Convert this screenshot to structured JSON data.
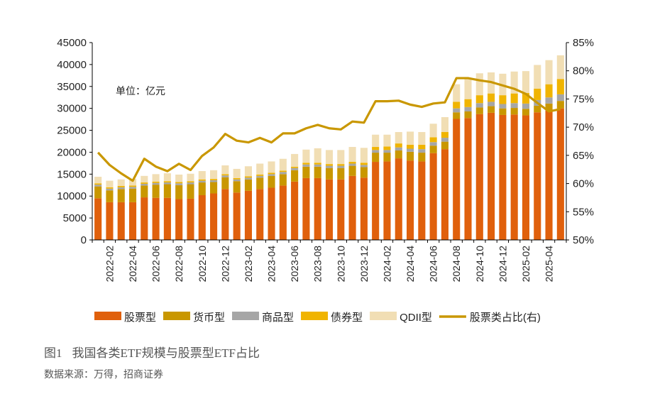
{
  "figure": {
    "number": "图1",
    "title": "我国各类ETF规模与股票型ETF占比",
    "source": "数据来源：万得，招商证券",
    "unit_note": "单位：亿元"
  },
  "chart_data": {
    "type": "bar",
    "stacked": true,
    "categories": [
      "2022-01",
      "2022-02",
      "2022-03",
      "2022-04",
      "2022-05",
      "2022-06",
      "2022-07",
      "2022-08",
      "2022-09",
      "2022-10",
      "2022-11",
      "2022-12",
      "2023-01",
      "2023-02",
      "2023-03",
      "2023-04",
      "2023-05",
      "2023-06",
      "2023-07",
      "2023-08",
      "2023-09",
      "2023-10",
      "2023-11",
      "2023-12",
      "2024-01",
      "2024-02",
      "2024-03",
      "2024-04",
      "2024-05",
      "2024-06",
      "2024-07",
      "2024-08",
      "2024-09",
      "2024-10",
      "2024-11",
      "2024-12",
      "2025-01",
      "2025-02",
      "2025-03",
      "2025-04",
      "2025-05"
    ],
    "xtick_labels": [
      "2022-02",
      "2022-04",
      "2022-06",
      "2022-08",
      "2022-10",
      "2022-12",
      "2023-02",
      "2023-04",
      "2023-06",
      "2023-08",
      "2023-10",
      "2023-12",
      "2024-02",
      "2024-04",
      "2024-06",
      "2024-08",
      "2024-10",
      "2024-12",
      "2025-02",
      "2025-04"
    ],
    "series": [
      {
        "name": "股票型",
        "color": "#E0600C",
        "values": [
          9500,
          8600,
          8600,
          8600,
          9700,
          9600,
          9600,
          9300,
          9400,
          10200,
          10600,
          11600,
          10800,
          11200,
          11600,
          11900,
          12400,
          13300,
          14100,
          14100,
          13800,
          13800,
          14600,
          14200,
          17800,
          17900,
          18600,
          18100,
          17900,
          19800,
          20700,
          27600,
          27800,
          28700,
          29000,
          28500,
          28600,
          28400,
          29100,
          29500,
          30000
        ]
      },
      {
        "name": "货币型",
        "color": "#C99700",
        "values": [
          2700,
          2700,
          3000,
          3100,
          2700,
          3000,
          3100,
          3200,
          3300,
          2900,
          2600,
          2700,
          2600,
          2600,
          2600,
          2700,
          2600,
          2600,
          2600,
          2600,
          2600,
          2600,
          2300,
          2400,
          2100,
          2000,
          1800,
          2000,
          2000,
          1700,
          1700,
          1500,
          1500,
          1500,
          1500,
          1500,
          1500,
          1500,
          1500,
          1600,
          1700
        ]
      },
      {
        "name": "商品型",
        "color": "#A6A6A6",
        "values": [
          400,
          400,
          400,
          400,
          400,
          400,
          400,
          400,
          400,
          400,
          400,
          400,
          400,
          400,
          400,
          400,
          500,
          500,
          500,
          500,
          500,
          500,
          500,
          500,
          600,
          600,
          700,
          700,
          800,
          800,
          900,
          900,
          1000,
          1000,
          1000,
          1000,
          1100,
          1200,
          1300,
          1400,
          1500
        ]
      },
      {
        "name": "债券型",
        "color": "#F0B400",
        "values": [
          300,
          300,
          300,
          300,
          300,
          300,
          300,
          300,
          300,
          300,
          300,
          300,
          300,
          300,
          300,
          300,
          300,
          300,
          400,
          400,
          400,
          400,
          400,
          500,
          700,
          800,
          900,
          900,
          1000,
          1100,
          1300,
          1500,
          1800,
          1800,
          1900,
          2000,
          2200,
          2400,
          2600,
          3000,
          3500
        ]
      },
      {
        "name": "QDII型",
        "color": "#F1DEB4",
        "values": [
          1500,
          1500,
          1500,
          1500,
          1500,
          1700,
          1800,
          1700,
          1700,
          1900,
          2000,
          2000,
          2100,
          2300,
          2500,
          2600,
          2700,
          2900,
          3000,
          3300,
          3200,
          3200,
          3400,
          3400,
          2800,
          2700,
          2600,
          3000,
          2900,
          3100,
          3400,
          4000,
          4600,
          5000,
          4800,
          4900,
          5000,
          5000,
          5400,
          5500,
          5400
        ]
      }
    ],
    "line": {
      "name": "股票类占比(右)",
      "color": "#C99700",
      "values": [
        65.5,
        63.3,
        61.8,
        60.5,
        64.4,
        63.0,
        62.2,
        63.5,
        62.4,
        64.9,
        66.4,
        68.8,
        67.6,
        67.3,
        68.1,
        67.3,
        68.9,
        68.9,
        69.8,
        70.4,
        69.8,
        69.6,
        71.0,
        70.8,
        74.6,
        74.6,
        74.7,
        74.0,
        73.6,
        74.2,
        74.4,
        78.7,
        78.7,
        78.3,
        78.0,
        77.4,
        76.8,
        75.9,
        74.3,
        72.8,
        73.2
      ]
    },
    "ylim": [
      0,
      45000
    ],
    "yticks": [
      0,
      5000,
      10000,
      15000,
      20000,
      25000,
      30000,
      35000,
      40000,
      45000
    ],
    "y2lim": [
      50,
      85
    ],
    "y2ticks": [
      "50%",
      "55%",
      "60%",
      "65%",
      "70%",
      "75%",
      "80%",
      "85%"
    ],
    "legend_position": "bottom",
    "grid": false
  }
}
